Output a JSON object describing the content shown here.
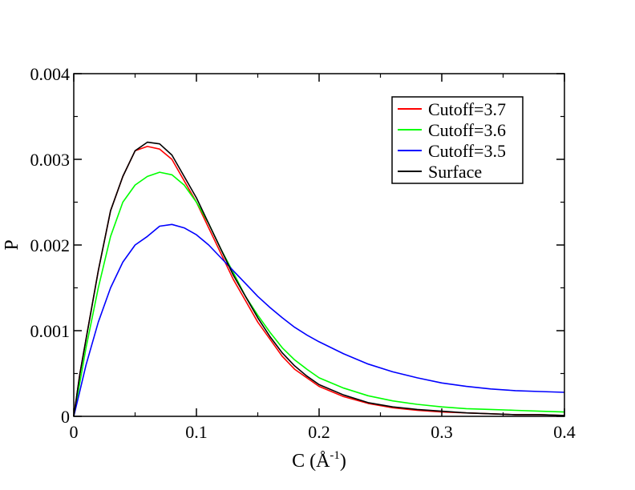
{
  "chart_data": {
    "type": "line",
    "xlabel": "C (Å",
    "xlabel_sup": "-1",
    "xlabel_close": ")",
    "ylabel": "P",
    "xlim": [
      0,
      0.4
    ],
    "ylim": [
      0,
      0.004
    ],
    "xticks": [
      {
        "value": 0,
        "label": "0"
      },
      {
        "value": 0.1,
        "label": "0.1"
      },
      {
        "value": 0.2,
        "label": "0.2"
      },
      {
        "value": 0.3,
        "label": "0.3"
      },
      {
        "value": 0.4,
        "label": "0.4"
      }
    ],
    "yticks": [
      {
        "value": 0,
        "label": "0"
      },
      {
        "value": 0.001,
        "label": "0.001"
      },
      {
        "value": 0.002,
        "label": "0.002"
      },
      {
        "value": 0.003,
        "label": "0.003"
      },
      {
        "value": 0.004,
        "label": "0.004"
      }
    ],
    "grid": false,
    "legend_position": "top-right",
    "series": [
      {
        "name": "Cutoff=3.7",
        "color": "#ff0000",
        "x": [
          0,
          0.005,
          0.01,
          0.02,
          0.03,
          0.04,
          0.05,
          0.06,
          0.07,
          0.08,
          0.09,
          0.1,
          0.11,
          0.12,
          0.13,
          0.14,
          0.15,
          0.16,
          0.17,
          0.18,
          0.19,
          0.2,
          0.22,
          0.24,
          0.26,
          0.28,
          0.3,
          0.32,
          0.34,
          0.36,
          0.38,
          0.4
        ],
        "y": [
          0,
          0.0005,
          0.0009,
          0.0017,
          0.0024,
          0.0028,
          0.0031,
          0.00315,
          0.00312,
          0.003,
          0.00275,
          0.0025,
          0.0022,
          0.0019,
          0.0016,
          0.00135,
          0.0011,
          0.0009,
          0.0007,
          0.00055,
          0.00045,
          0.00035,
          0.00023,
          0.00015,
          0.0001,
          7e-05,
          5e-05,
          4e-05,
          3e-05,
          2e-05,
          2e-05,
          1e-05
        ]
      },
      {
        "name": "Cutoff=3.6",
        "color": "#00ff00",
        "x": [
          0,
          0.005,
          0.01,
          0.02,
          0.03,
          0.04,
          0.05,
          0.06,
          0.07,
          0.08,
          0.09,
          0.1,
          0.11,
          0.12,
          0.13,
          0.14,
          0.15,
          0.16,
          0.17,
          0.18,
          0.19,
          0.2,
          0.22,
          0.24,
          0.26,
          0.28,
          0.3,
          0.32,
          0.34,
          0.36,
          0.38,
          0.4
        ],
        "y": [
          0,
          0.0004,
          0.0008,
          0.0015,
          0.0021,
          0.0025,
          0.0027,
          0.0028,
          0.00285,
          0.00282,
          0.0027,
          0.0025,
          0.00225,
          0.00195,
          0.00168,
          0.0014,
          0.00118,
          0.00098,
          0.0008,
          0.00066,
          0.00055,
          0.00045,
          0.00033,
          0.00024,
          0.00018,
          0.00014,
          0.00011,
          9e-05,
          8e-05,
          7e-05,
          6e-05,
          5e-05
        ]
      },
      {
        "name": "Cutoff=3.5",
        "color": "#0000ff",
        "x": [
          0,
          0.005,
          0.01,
          0.02,
          0.03,
          0.04,
          0.05,
          0.06,
          0.07,
          0.08,
          0.09,
          0.1,
          0.11,
          0.12,
          0.13,
          0.14,
          0.15,
          0.16,
          0.17,
          0.18,
          0.19,
          0.2,
          0.22,
          0.24,
          0.26,
          0.28,
          0.3,
          0.32,
          0.34,
          0.36,
          0.38,
          0.4
        ],
        "y": [
          0,
          0.0003,
          0.0006,
          0.0011,
          0.0015,
          0.0018,
          0.002,
          0.0021,
          0.00222,
          0.00224,
          0.0022,
          0.00212,
          0.002,
          0.00185,
          0.0017,
          0.00155,
          0.0014,
          0.00127,
          0.00115,
          0.00104,
          0.00095,
          0.00087,
          0.00073,
          0.00061,
          0.00052,
          0.00045,
          0.00039,
          0.00035,
          0.00032,
          0.0003,
          0.00029,
          0.00028
        ]
      },
      {
        "name": "Surface",
        "color": "#000000",
        "x": [
          0,
          0.005,
          0.01,
          0.02,
          0.03,
          0.04,
          0.05,
          0.06,
          0.07,
          0.08,
          0.09,
          0.1,
          0.11,
          0.12,
          0.13,
          0.14,
          0.15,
          0.16,
          0.17,
          0.18,
          0.19,
          0.2,
          0.22,
          0.24,
          0.26,
          0.28,
          0.3,
          0.32,
          0.34,
          0.36,
          0.38,
          0.4
        ],
        "y": [
          0,
          0.0005,
          0.0009,
          0.0017,
          0.0024,
          0.0028,
          0.0031,
          0.0032,
          0.00318,
          0.00305,
          0.0028,
          0.00255,
          0.00225,
          0.00195,
          0.00165,
          0.0014,
          0.00115,
          0.00093,
          0.00074,
          0.00059,
          0.00047,
          0.00037,
          0.00025,
          0.00016,
          0.00011,
          8e-05,
          6e-05,
          4e-05,
          3e-05,
          2e-05,
          2e-05,
          1e-05
        ]
      }
    ]
  }
}
